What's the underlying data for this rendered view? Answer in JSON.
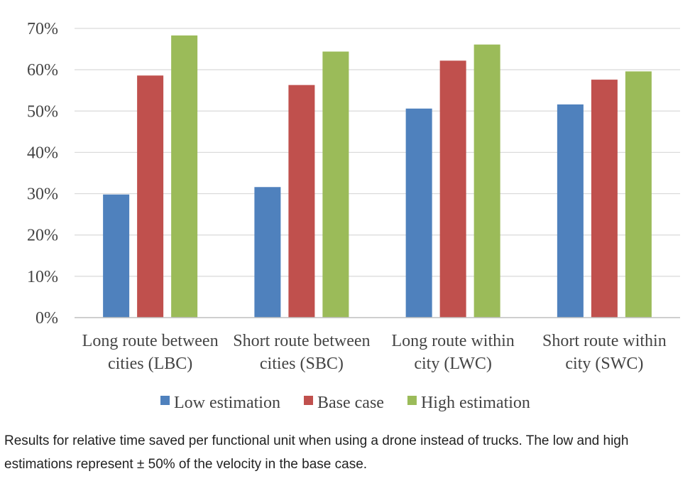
{
  "chart_data": {
    "type": "bar",
    "title": "",
    "xlabel": "",
    "ylabel": "",
    "ylim": [
      0,
      70
    ],
    "yticks": [
      0,
      10,
      20,
      30,
      40,
      50,
      60,
      70
    ],
    "ytick_labels": [
      "0%",
      "10%",
      "20%",
      "30%",
      "40%",
      "50%",
      "60%",
      "70%"
    ],
    "grid": true,
    "legend_position": "bottom",
    "categories": [
      [
        "Long route between",
        "cities (LBC)"
      ],
      [
        "Short route between",
        "cities (SBC)"
      ],
      [
        "Long route within",
        "city (LWC)"
      ],
      [
        "Short route within",
        "city (SWC)"
      ]
    ],
    "series": [
      {
        "name": "Low estimation",
        "color": "#4f81bd",
        "values": [
          29.8,
          31.6,
          50.6,
          51.6
        ]
      },
      {
        "name": "Base case",
        "color": "#c0504d",
        "values": [
          58.6,
          56.3,
          62.2,
          57.6
        ]
      },
      {
        "name": "High estimation",
        "color": "#9bbb59",
        "values": [
          68.3,
          64.4,
          66.1,
          59.6
        ]
      }
    ]
  },
  "caption": "Results for relative time saved per functional unit when using a drone instead of trucks. The low and high estimations represent ± 50% of the velocity in the base case."
}
